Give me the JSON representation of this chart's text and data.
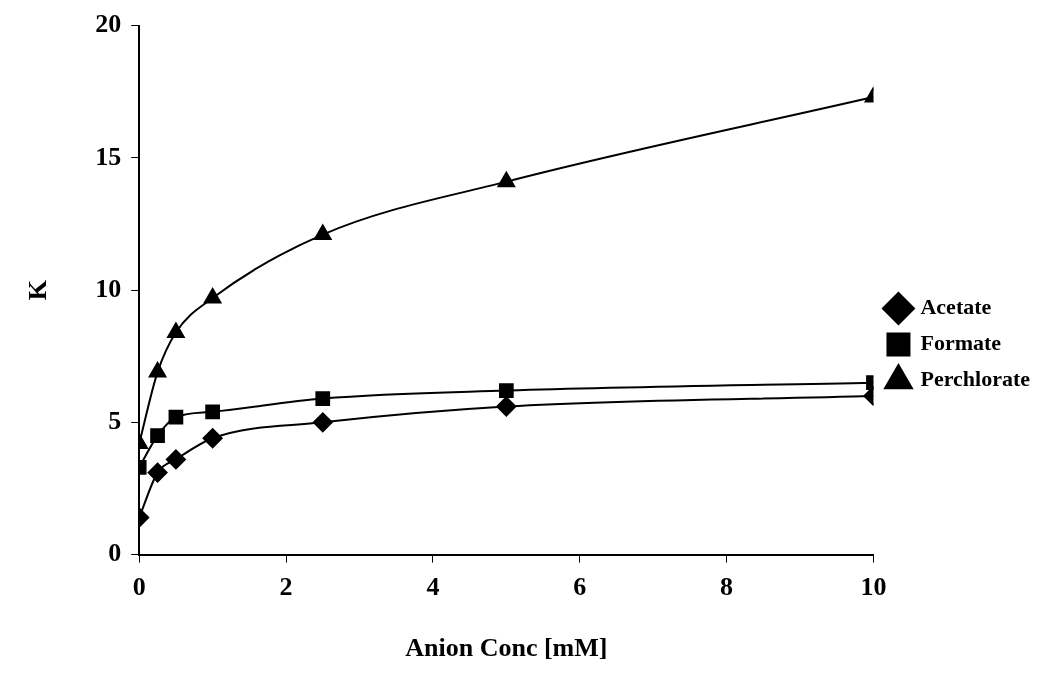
{
  "chart_data": {
    "type": "line",
    "xlabel": "Anion Conc [mM]",
    "ylabel": "K",
    "x": [
      0,
      0.25,
      0.5,
      1,
      2.5,
      5,
      10
    ],
    "series": [
      {
        "name": "Acetate",
        "color": "#000000",
        "marker": "diamond",
        "values": [
          1.4,
          3.1,
          3.6,
          4.4,
          5.0,
          5.6,
          6.0
        ]
      },
      {
        "name": "Formate",
        "color": "#000000",
        "marker": "square",
        "values": [
          3.3,
          4.5,
          5.2,
          5.4,
          5.9,
          6.2,
          6.5
        ]
      },
      {
        "name": "Perchlorate",
        "color": "#000000",
        "marker": "triangle",
        "values": [
          4.2,
          6.9,
          8.4,
          9.7,
          12.1,
          14.1,
          17.3
        ]
      }
    ],
    "xlim": [
      0,
      10
    ],
    "xticks": [
      0,
      2,
      4,
      6,
      8,
      10
    ],
    "ylim": [
      0,
      20
    ],
    "yticks": [
      0,
      5,
      10,
      15,
      20
    ],
    "grid": false,
    "legend": "right",
    "line_style": "solid"
  }
}
